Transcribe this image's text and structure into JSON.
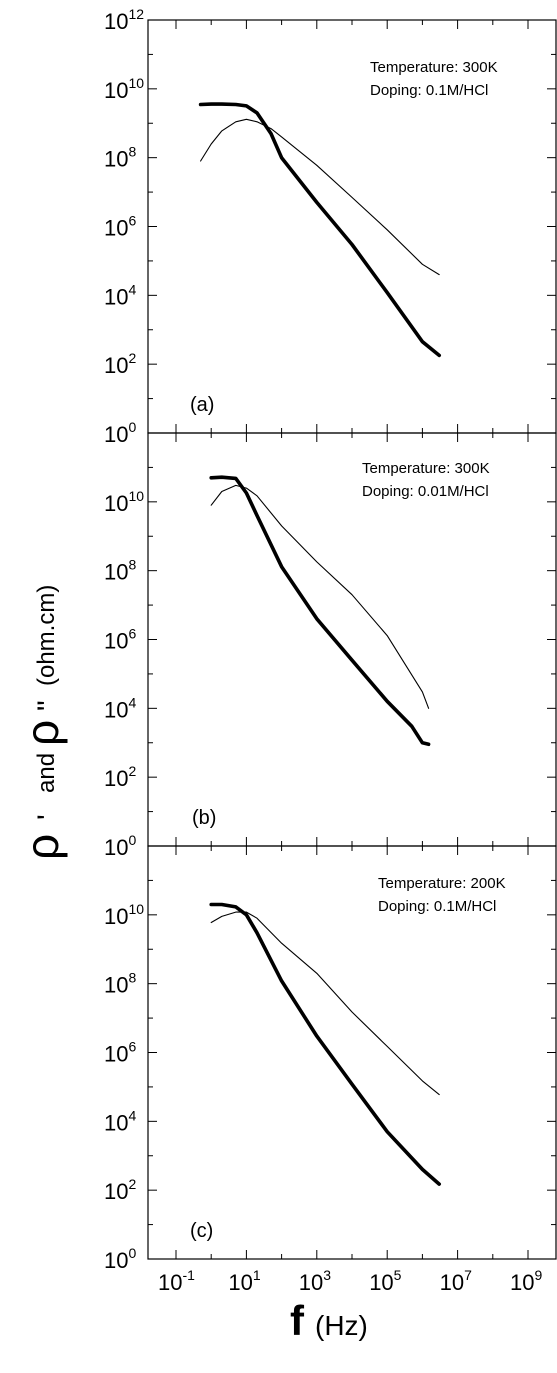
{
  "chart_data": [
    {
      "type": "line",
      "panel_label": "(a)",
      "annotation": [
        "Temperature: 300K",
        "Doping: 0.1M/HCl"
      ],
      "x_log_range": [
        -1,
        9
      ],
      "y_log_range": [
        0,
        12
      ],
      "x_scale": "log",
      "y_scale": "log",
      "series": [
        {
          "style": "thick",
          "x": [
            0.5,
            1,
            2,
            5,
            10,
            20,
            50,
            100,
            1000,
            10000,
            100000,
            1000000,
            3000000
          ],
          "y": [
            3500000000.0,
            3600000000.0,
            3600000000.0,
            3500000000.0,
            3200000000.0,
            2000000000.0,
            500000000.0,
            100000000.0,
            5000000.0,
            300000.0,
            12000.0,
            450.0,
            180.0
          ]
        },
        {
          "style": "thin",
          "x": [
            0.5,
            1,
            2,
            5,
            10,
            20,
            50,
            100,
            1000,
            10000,
            100000,
            1000000,
            3000000
          ],
          "y": [
            80000000.0,
            250000000.0,
            600000000.0,
            1100000000.0,
            1300000000.0,
            1100000000.0,
            700000000.0,
            400000000.0,
            60000000.0,
            7000000.0,
            800000.0,
            80000.0,
            40000.0
          ]
        }
      ]
    },
    {
      "type": "line",
      "panel_label": "(b)",
      "annotation": [
        "Temperature: 300K",
        "Doping:  0.01M/HCl"
      ],
      "x_log_range": [
        -1,
        9
      ],
      "y_log_range": [
        0,
        12
      ],
      "x_scale": "log",
      "y_scale": "log",
      "series": [
        {
          "style": "thick",
          "x": [
            1,
            2,
            5,
            10,
            20,
            100,
            1000,
            10000,
            100000,
            500000,
            1000000,
            1500000
          ],
          "y": [
            50000000000.0,
            52000000000.0,
            48000000000.0,
            18000000000.0,
            4000000000.0,
            130000000.0,
            4000000.0,
            250000.0,
            16000.0,
            3000.0,
            1000.0,
            900.0
          ]
        },
        {
          "style": "thin",
          "x": [
            1,
            2,
            5,
            10,
            20,
            100,
            1000,
            10000,
            100000,
            1000000,
            1500000
          ],
          "y": [
            8000000000.0,
            20000000000.0,
            30000000000.0,
            25000000000.0,
            15000000000.0,
            2000000000.0,
            180000000.0,
            20000000.0,
            1300000.0,
            30000.0,
            10000.0
          ]
        }
      ]
    },
    {
      "type": "line",
      "panel_label": "(c)",
      "annotation": [
        "Temperature: 200K",
        "Doping: 0.1M/HCl"
      ],
      "x_log_range": [
        -1,
        9
      ],
      "y_log_range": [
        0,
        12
      ],
      "x_scale": "log",
      "y_scale": "log",
      "series": [
        {
          "style": "thick",
          "x": [
            1,
            2,
            5,
            10,
            20,
            100,
            1000,
            10000,
            100000,
            1000000,
            3000000
          ],
          "y": [
            20000000000.0,
            20000000000.0,
            17000000000.0,
            10000000000.0,
            3000000000.0,
            120000000.0,
            3000000.0,
            120000.0,
            5000.0,
            400.0,
            150.0
          ]
        },
        {
          "style": "thin",
          "x": [
            1,
            2,
            5,
            10,
            20,
            100,
            1000,
            10000,
            100000,
            1000000,
            3000000
          ],
          "y": [
            6000000000.0,
            9000000000.0,
            12000000000.0,
            12000000000.0,
            8000000000.0,
            1500000000.0,
            200000000.0,
            15000000.0,
            1500000.0,
            150000.0,
            60000.0
          ]
        }
      ]
    }
  ],
  "y_axis_label": {
    "rho1": "ρ",
    "prime": "'",
    "and": "and",
    "rho2": "ρ",
    "dprime": "\"",
    "unit": "(ohm.cm)"
  },
  "x_axis_label": {
    "symbol": "f",
    "unit": "(Hz)"
  },
  "tick_base": "10"
}
